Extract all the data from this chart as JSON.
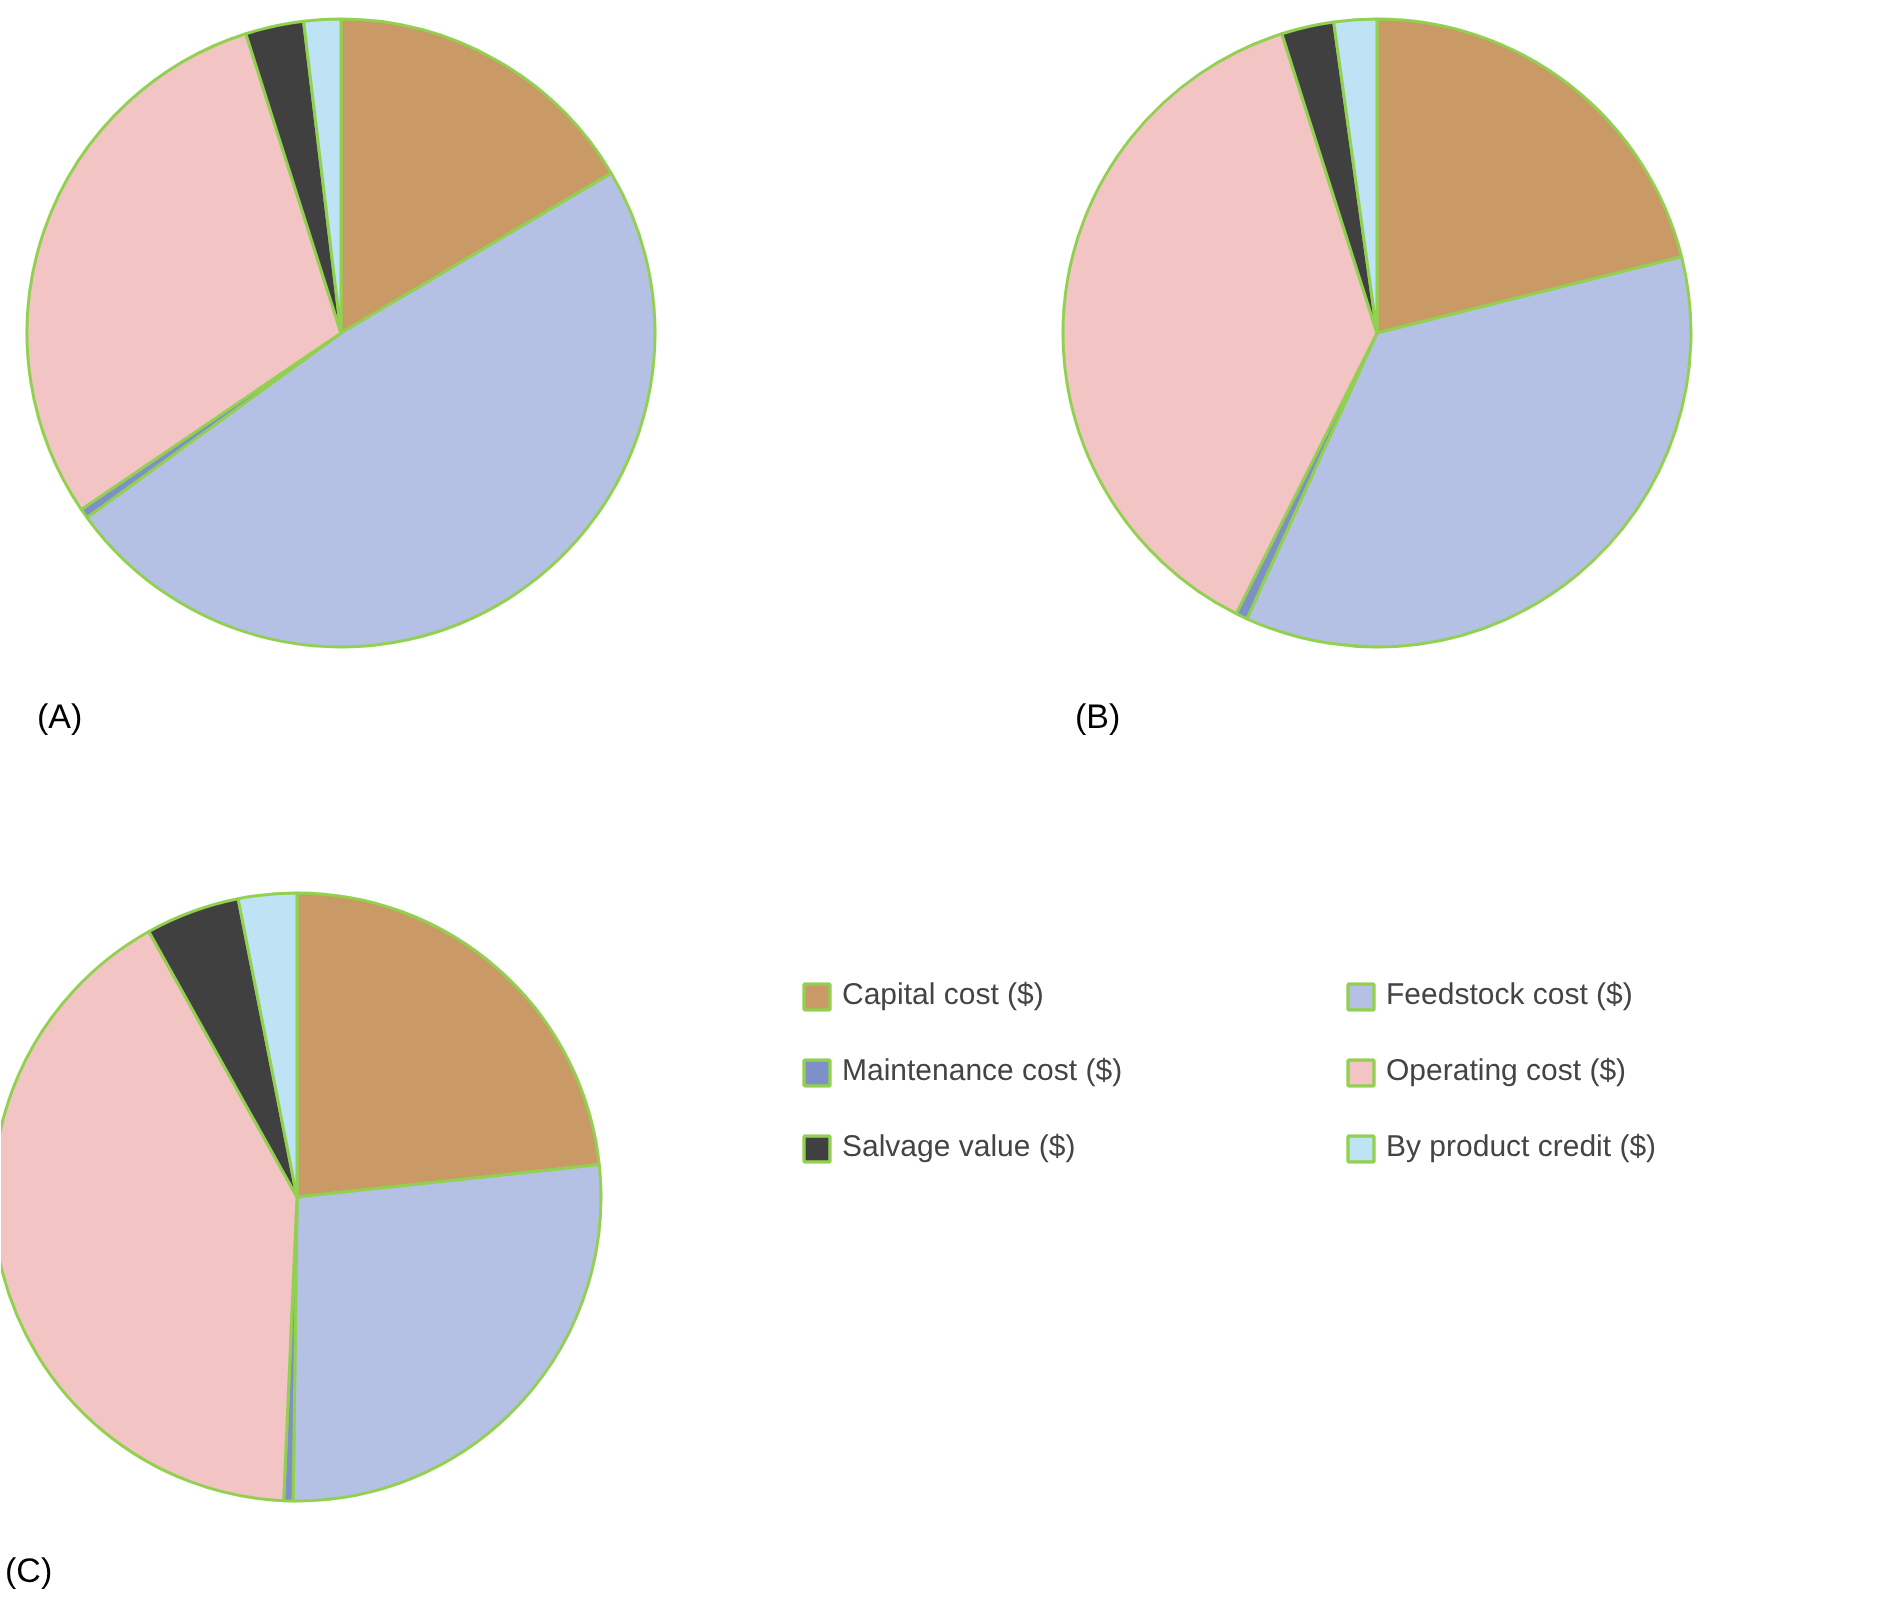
{
  "chart_data": [
    {
      "type": "pie",
      "title": "(A)",
      "categories": [
        "Capital cost ($)",
        "Feedstock cost ($)",
        "Maintenance cost ($)",
        "Operating cost ($)",
        "Salvage value ($)",
        "By product credit ($)"
      ],
      "values": [
        16.5,
        48.5,
        0.5,
        29.6,
        3.0,
        1.9
      ],
      "colors": [
        "#c99a66",
        "#b4c0e4",
        "#7f8fc8",
        "#f2c4c4",
        "#404040",
        "#bde3f5"
      ],
      "legend": "right"
    },
    {
      "type": "pie",
      "title": "(B)",
      "categories": [
        null,
        null,
        null,
        null,
        null,
        null
      ],
      "values": [
        21.1,
        35.7,
        0.6,
        37.7,
        2.7,
        2.2
      ],
      "colors": [
        "#c99a66",
        "#b4c0e4",
        "#7f8fc8",
        "#f2c4c4",
        "#404040",
        "#bde3f5"
      ]
    },
    {
      "type": "pie",
      "title": "(C)",
      "categories": [
        null,
        null,
        null,
        null,
        null,
        null
      ],
      "values": [
        23.3,
        26.9,
        0.5,
        41.2,
        5.0,
        3.1
      ],
      "colors": [
        "#c99a66",
        "#b4c0e4",
        "#7f8fc8",
        "#f2c4c4",
        "#404040",
        "#bde3f5"
      ]
    }
  ]
}
